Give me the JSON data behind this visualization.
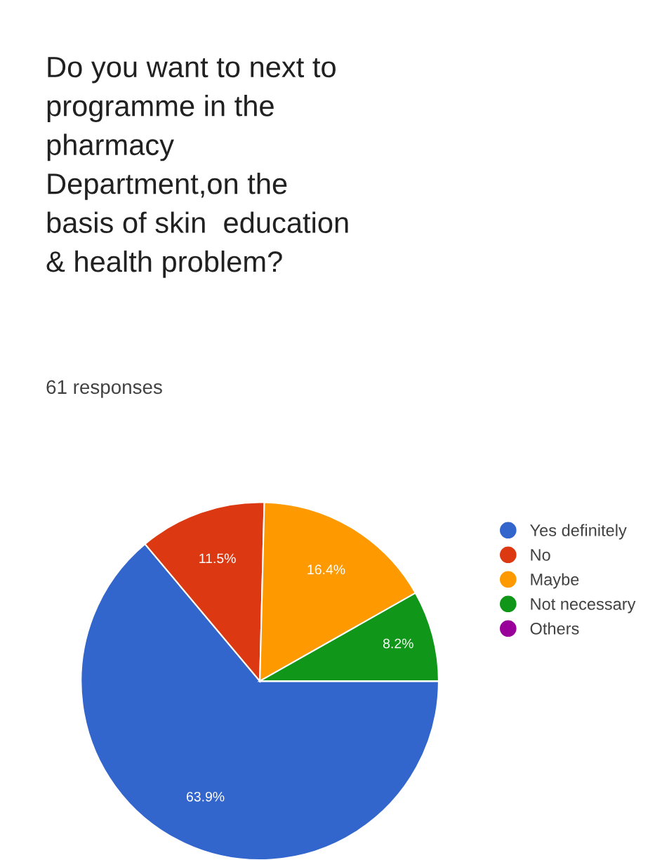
{
  "chart_data": {
    "type": "pie",
    "title": "Do you want to next to\nprogramme in the\npharmacy\nDepartment,on the\nbasis of skin  education\n& health problem?",
    "subtitle": "61 responses",
    "categories": [
      "Yes definitely",
      "No",
      "Maybe",
      "Not necessary",
      "Others"
    ],
    "values": [
      63.9,
      11.5,
      16.4,
      8.2,
      0
    ],
    "colors": [
      "#3366cc",
      "#dc3912",
      "#ff9900",
      "#109618",
      "#990099"
    ],
    "value_labels": [
      "63.9%",
      "11.5%",
      "16.4%",
      "8.2%",
      null
    ],
    "legend": "right"
  }
}
